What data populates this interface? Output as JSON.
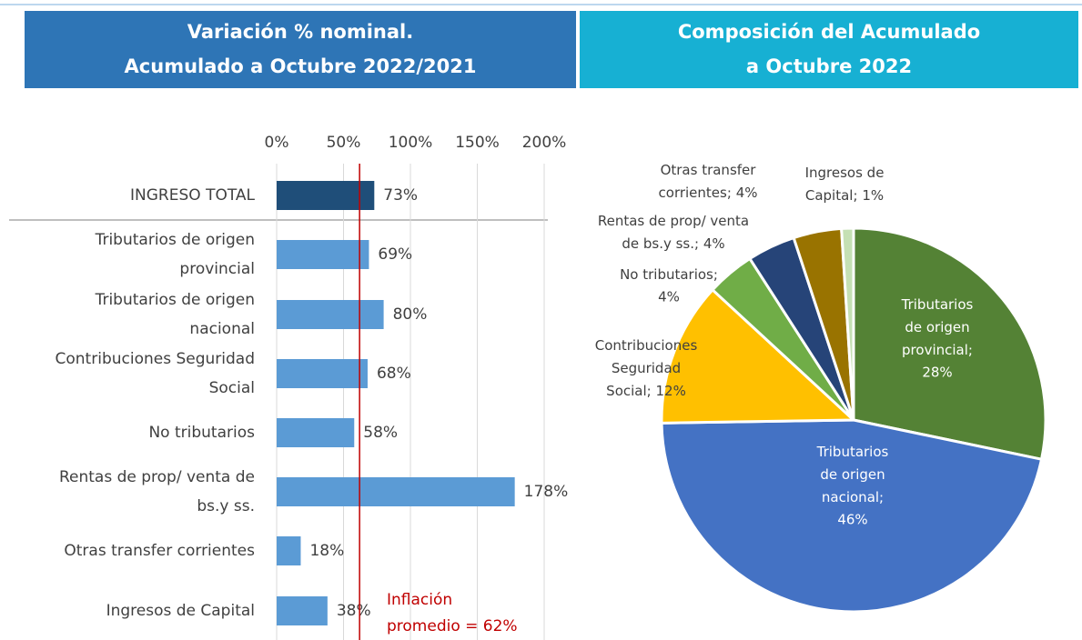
{
  "chart_data": [
    {
      "type": "hbar",
      "title": [
        "Variación % nominal.",
        "Acumulado a Octubre 2022/2021"
      ],
      "title_color": "#2e75b6",
      "categories": [
        [
          "INGRESO TOTAL"
        ],
        [
          "Tributarios de origen",
          "provincial"
        ],
        [
          "Tributarios de origen",
          "nacional"
        ],
        [
          "Contribuciones Seguridad",
          "Social"
        ],
        [
          "No tributarios"
        ],
        [
          "Rentas de prop/ venta de",
          "bs.y ss."
        ],
        [
          "Otras transfer corrientes"
        ],
        [
          "Ingresos de Capital"
        ]
      ],
      "values": [
        73,
        69,
        80,
        68,
        58,
        178,
        18,
        38
      ],
      "value_labels": [
        "73%",
        "69%",
        "80%",
        "68%",
        "58%",
        "178%",
        "18%",
        "38%"
      ],
      "colors": [
        "#1f4e79",
        "#5b9bd5",
        "#5b9bd5",
        "#5b9bd5",
        "#5b9bd5",
        "#5b9bd5",
        "#5b9bd5",
        "#5b9bd5"
      ],
      "xlim": [
        0,
        200
      ],
      "xticks": [
        {
          "value": 0,
          "label": "0%"
        },
        {
          "value": 50,
          "label": "50%"
        },
        {
          "value": 100,
          "label": "100%"
        },
        {
          "value": 150,
          "label": "150%"
        },
        {
          "value": 200,
          "label": "200%"
        }
      ],
      "grid": true,
      "reference_line": {
        "value": 62,
        "label": [
          "Inflación",
          "promedio = 62%"
        ],
        "color": "#c00000"
      }
    },
    {
      "type": "pie",
      "title": [
        "Composición del Acumulado",
        "a Octubre 2022"
      ],
      "title_color": "#17b0d3",
      "labels": [
        [
          "Tributarios",
          "de origen",
          "provincial;"
        ],
        [
          "Tributarios",
          "de origen",
          "nacional;"
        ],
        [
          "Contribuciones",
          "Seguridad",
          "Social;"
        ],
        [
          "No tributarios;"
        ],
        [
          "Rentas de prop/ venta",
          "de bs.y ss.;"
        ],
        [
          "Otras transfer",
          "corrientes;"
        ],
        [
          "Ingresos de",
          "Capital;"
        ]
      ],
      "values": [
        28,
        46,
        12,
        4,
        4,
        4,
        1
      ],
      "value_labels": [
        "28%",
        "46%",
        "12%",
        "4%",
        "4%",
        "4%",
        "1%"
      ],
      "colors": [
        "#548235",
        "#4472c4",
        "#ffc000",
        "#70ad47",
        "#264478",
        "#997300",
        "#c5e0b4"
      ]
    }
  ]
}
